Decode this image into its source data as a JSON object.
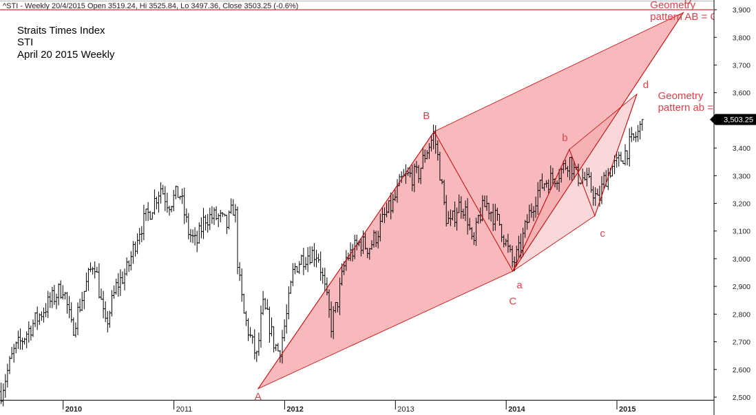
{
  "header": {
    "title": "^STI - Weekly 20/4/2015 Open 3519.24, Hi 3525.84, Lo 3497.36, Close 3503.25 (-0.6%)"
  },
  "notes": [
    "Straits Times Index",
    "STI",
    "April 20 2015 Weekly"
  ],
  "colors": {
    "annotation": "#e0404a",
    "pattern_fill": "#f5a8ab",
    "pattern_line": "#cc0000",
    "candle": "#000000",
    "price_box": "#000000",
    "price_text": "#ffffff"
  },
  "chart_data": {
    "type": "candlestick",
    "title": "^STI - Weekly 20/4/2015 Open 3519.24, Hi 3525.84, Lo 3497.36, Close 3503.25 (-0.6%)",
    "x_axis": {
      "range": [
        2009.43,
        2015.87
      ],
      "ticks": [
        {
          "label": "2010",
          "value": 2010.0,
          "bold": true
        },
        {
          "label": "2011",
          "value": 2011.0,
          "bold": false
        },
        {
          "label": "2012",
          "value": 2012.0,
          "bold": true
        },
        {
          "label": "2013",
          "value": 2013.0,
          "bold": false
        },
        {
          "label": "2014",
          "value": 2014.0,
          "bold": true
        },
        {
          "label": "2015",
          "value": 2015.0,
          "bold": true
        }
      ]
    },
    "y_axis": {
      "range": [
        2490,
        3935
      ],
      "ticks": [
        "2,500",
        "2,600",
        "2,700",
        "2,800",
        "2,900",
        "3,000",
        "3,100",
        "3,200",
        "3,300",
        "3,400",
        "3,500",
        "3,600",
        "3,700",
        "3,800",
        "3,900"
      ],
      "tick_values": [
        2500,
        2600,
        2700,
        2800,
        2900,
        3000,
        3100,
        3200,
        3300,
        3400,
        3500,
        3600,
        3700,
        3800,
        3900
      ]
    },
    "last_price": {
      "label": "3,503.25",
      "value": 3503.25
    },
    "horizontal_line": {
      "value": 3900
    },
    "close_path": [
      [
        2009.44,
        2520
      ],
      [
        2009.55,
        2660
      ],
      [
        2009.7,
        2750
      ],
      [
        2009.85,
        2830
      ],
      [
        2010.0,
        2900
      ],
      [
        2010.08,
        2740
      ],
      [
        2010.18,
        2870
      ],
      [
        2010.28,
        3000
      ],
      [
        2010.38,
        2750
      ],
      [
        2010.48,
        2900
      ],
      [
        2010.58,
        2960
      ],
      [
        2010.68,
        3100
      ],
      [
        2010.78,
        3170
      ],
      [
        2010.88,
        3260
      ],
      [
        2010.95,
        3200
      ],
      [
        2011.05,
        3240
      ],
      [
        2011.13,
        3100
      ],
      [
        2011.2,
        3050
      ],
      [
        2011.28,
        3150
      ],
      [
        2011.4,
        3150
      ],
      [
        2011.48,
        3120
      ],
      [
        2011.55,
        3200
      ],
      [
        2011.58,
        2950
      ],
      [
        2011.63,
        2800
      ],
      [
        2011.7,
        2700
      ],
      [
        2011.75,
        2640
      ],
      [
        2011.8,
        2830
      ],
      [
        2011.85,
        2780
      ],
      [
        2011.9,
        2700
      ],
      [
        2011.95,
        2660
      ],
      [
        2012.02,
        2800
      ],
      [
        2012.08,
        2960
      ],
      [
        2012.15,
        3000
      ],
      [
        2012.22,
        3020
      ],
      [
        2012.3,
        3020
      ],
      [
        2012.38,
        2850
      ],
      [
        2012.42,
        2760
      ],
      [
        2012.48,
        2850
      ],
      [
        2012.55,
        3000
      ],
      [
        2012.6,
        3020
      ],
      [
        2012.68,
        3060
      ],
      [
        2012.76,
        3040
      ],
      [
        2012.82,
        3080
      ],
      [
        2012.9,
        3150
      ],
      [
        2012.98,
        3200
      ],
      [
        2013.05,
        3280
      ],
      [
        2013.12,
        3300
      ],
      [
        2013.2,
        3300
      ],
      [
        2013.28,
        3390
      ],
      [
        2013.35,
        3450
      ],
      [
        2013.4,
        3320
      ],
      [
        2013.45,
        3160
      ],
      [
        2013.5,
        3120
      ],
      [
        2013.55,
        3180
      ],
      [
        2013.6,
        3200
      ],
      [
        2013.65,
        3150
      ],
      [
        2013.7,
        3030
      ],
      [
        2013.75,
        3150
      ],
      [
        2013.82,
        3200
      ],
      [
        2013.88,
        3160
      ],
      [
        2013.95,
        3120
      ],
      [
        2014.0,
        3050
      ],
      [
        2014.06,
        2980
      ],
      [
        2014.12,
        3030
      ],
      [
        2014.2,
        3150
      ],
      [
        2014.28,
        3240
      ],
      [
        2014.35,
        3280
      ],
      [
        2014.42,
        3290
      ],
      [
        2014.5,
        3320
      ],
      [
        2014.57,
        3360
      ],
      [
        2014.63,
        3300
      ],
      [
        2014.7,
        3290
      ],
      [
        2014.78,
        3250
      ],
      [
        2014.83,
        3200
      ],
      [
        2014.88,
        3280
      ],
      [
        2014.95,
        3330
      ],
      [
        2015.0,
        3340
      ],
      [
        2015.05,
        3370
      ],
      [
        2015.1,
        3400
      ],
      [
        2015.15,
        3430
      ],
      [
        2015.2,
        3460
      ],
      [
        2015.24,
        3503
      ]
    ]
  },
  "pattern": {
    "big_fill": [
      [
        2011.76,
        2530
      ],
      [
        2013.35,
        3460
      ],
      [
        2015.6,
        3890
      ],
      [
        2014.06,
        2955
      ]
    ],
    "small_fill": [
      [
        2014.06,
        2955
      ],
      [
        2014.57,
        3395
      ],
      [
        2015.18,
        3595
      ],
      [
        2014.8,
        3155
      ]
    ],
    "big_zigzag": [
      [
        2011.76,
        2530
      ],
      [
        2013.35,
        3460
      ],
      [
        2014.06,
        2955
      ],
      [
        2015.6,
        3890
      ]
    ],
    "small_zigzag": [
      [
        2014.06,
        2955
      ],
      [
        2014.57,
        3395
      ],
      [
        2014.8,
        3155
      ],
      [
        2015.18,
        3595
      ]
    ],
    "point_labels": [
      {
        "text": "A",
        "x": 2011.76,
        "y": 2490
      },
      {
        "text": "B",
        "x": 2013.28,
        "y": 3505
      },
      {
        "text": "C",
        "x": 2014.06,
        "y": 2835
      },
      {
        "text": "D",
        "x": 2015.64,
        "y": 3922
      },
      {
        "text": "a",
        "x": 2014.12,
        "y": 2893
      },
      {
        "text": "b",
        "x": 2014.53,
        "y": 3425
      },
      {
        "text": "c",
        "x": 2014.87,
        "y": 3080
      },
      {
        "text": "d",
        "x": 2015.26,
        "y": 3617
      }
    ],
    "annotations": [
      {
        "lines": [
          "Geometry",
          "pattern AB = CD"
        ],
        "x": 2015.3,
        "y": 3905
      },
      {
        "lines": [
          "Geometry",
          "pattern ab = cd"
        ],
        "x": 2015.37,
        "y": 3577
      }
    ]
  }
}
